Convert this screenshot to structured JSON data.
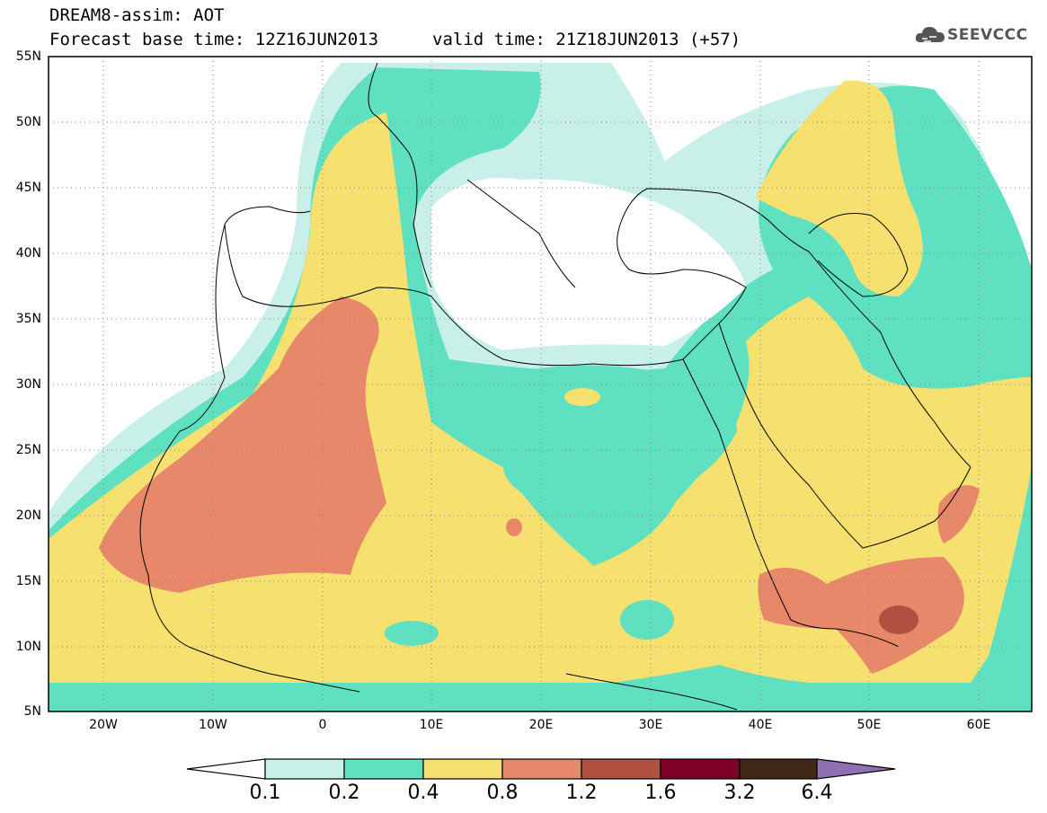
{
  "header": {
    "title_line1": "DREAM8-assim: AOT",
    "title_line2": "Forecast base time: 12Z16JUN2013",
    "valid_time": "valid time: 21Z18JUN2013 (+57)",
    "logo_text": "SEEVCCC"
  },
  "axes": {
    "lat_labels": [
      "55N",
      "50N",
      "45N",
      "40N",
      "35N",
      "30N",
      "25N",
      "20N",
      "15N",
      "10N",
      "5N"
    ],
    "lon_labels": [
      "20W",
      "10W",
      "0",
      "10E",
      "20E",
      "30E",
      "40E",
      "50E",
      "60E"
    ]
  },
  "colorbar": {
    "labels": [
      "0.1",
      "0.2",
      "0.4",
      "0.8",
      "1.2",
      "1.6",
      "3.2",
      "6.4"
    ],
    "colors": [
      "#ffffff",
      "#c8f0e8",
      "#5fe0c0",
      "#f5e070",
      "#e8886a",
      "#b05040",
      "#800028",
      "#402818",
      "#9070b0"
    ]
  },
  "colors": {
    "band_0.1": "#c8f0e8",
    "band_0.2": "#5fe0c0",
    "band_0.4": "#f5e070",
    "band_0.8": "#e8886a",
    "band_1.2": "#b05040"
  }
}
